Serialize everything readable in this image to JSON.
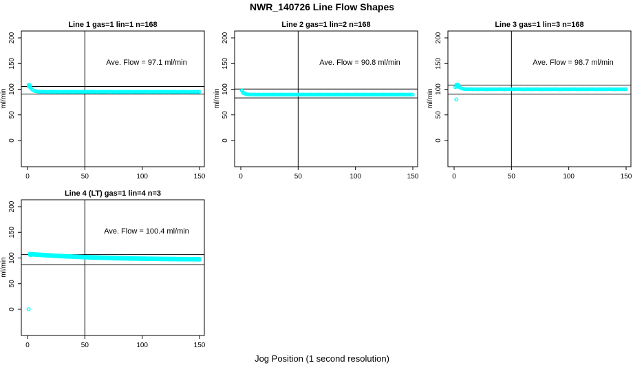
{
  "figure": {
    "main_title": "NWR_140726  Line Flow Shapes",
    "x_axis_label": "Jog Position (1 second resolution)",
    "y_axis_label": "ml/min",
    "point_color": "#00FFFF",
    "line_color": "#000000",
    "background_color": "#FFFFFF"
  },
  "chart_data": {
    "type": "scatter",
    "title": "NWR_140726  Line Flow Shapes",
    "xlabel": "Jog Position (1 second resolution)",
    "ylabel": "ml/min",
    "xlim": [
      -5.4,
      154.2
    ],
    "ylim": [
      -51,
      213
    ],
    "x_ticks": [
      0,
      50,
      100,
      150
    ],
    "y_ticks": [
      0,
      50,
      100,
      150,
      200
    ],
    "grid": false,
    "legend": "none",
    "vline_x": 50,
    "plots": [
      {
        "title": "Line 1 gas=1 lin=1 n=168",
        "gas": 1,
        "lin": 1,
        "n": 168,
        "ave_flow": 97.1,
        "annotation": "Ave. Flow =  97.1  ml/min",
        "ref_upper": 105.4,
        "ref_lower": 90.6,
        "band_layers": 1,
        "anchors": [
          [
            1,
            107.5
          ],
          [
            2,
            106
          ],
          [
            3,
            102.5
          ],
          [
            4,
            99.5
          ],
          [
            5,
            97.8
          ],
          [
            6,
            96.8
          ],
          [
            7,
            96.1
          ],
          [
            8,
            95.7
          ],
          [
            9,
            95.4
          ],
          [
            10,
            95.2
          ],
          [
            12,
            94.9
          ],
          [
            14,
            95.2
          ],
          [
            16,
            94.8
          ],
          [
            18,
            95.1
          ],
          [
            20,
            94.8
          ],
          [
            24,
            95.1
          ],
          [
            28,
            94.7
          ],
          [
            32,
            95.0
          ],
          [
            36,
            94.8
          ],
          [
            40,
            95.1
          ],
          [
            44,
            94.7
          ],
          [
            48,
            95.0
          ],
          [
            52,
            94.8
          ],
          [
            56,
            95.1
          ],
          [
            60,
            94.7
          ],
          [
            64,
            95.0
          ],
          [
            68,
            94.8
          ],
          [
            72,
            95.1
          ],
          [
            76,
            94.7
          ],
          [
            80,
            95.0
          ],
          [
            84,
            94.8
          ],
          [
            88,
            95.1
          ],
          [
            92,
            94.7
          ],
          [
            96,
            95.0
          ],
          [
            100,
            94.8
          ],
          [
            104,
            95.1
          ],
          [
            108,
            94.7
          ],
          [
            112,
            95.0
          ],
          [
            116,
            94.8
          ],
          [
            120,
            95.1
          ],
          [
            124,
            94.7
          ],
          [
            128,
            95.0
          ],
          [
            132,
            94.8
          ],
          [
            136,
            95.1
          ],
          [
            140,
            94.7
          ],
          [
            144,
            95.0
          ],
          [
            148,
            94.8
          ],
          [
            150,
            95.0
          ]
        ],
        "extra_points": [
          [
            1,
            105
          ],
          [
            1,
            108.5
          ],
          [
            2,
            104
          ],
          [
            2,
            108
          ]
        ],
        "outliers": []
      },
      {
        "title": "Line 2 gas=1 lin=2 n=168",
        "gas": 1,
        "lin": 2,
        "n": 168,
        "ave_flow": 90.8,
        "annotation": "Ave. Flow =  90.8  ml/min",
        "ref_upper": 100.4,
        "ref_lower": 83.0,
        "band_layers": 1,
        "anchors": [
          [
            1,
            98
          ],
          [
            2,
            94
          ],
          [
            3,
            91.8
          ],
          [
            4,
            90.8
          ],
          [
            5,
            90.3
          ],
          [
            6,
            90.0
          ],
          [
            8,
            89.7
          ],
          [
            10,
            89.5
          ],
          [
            12,
            89.7
          ],
          [
            14,
            89.4
          ],
          [
            16,
            89.6
          ],
          [
            18,
            89.4
          ],
          [
            20,
            89.6
          ],
          [
            24,
            89.4
          ],
          [
            28,
            89.6
          ],
          [
            32,
            89.4
          ],
          [
            36,
            89.6
          ],
          [
            40,
            89.4
          ],
          [
            44,
            89.6
          ],
          [
            48,
            89.4
          ],
          [
            52,
            89.6
          ],
          [
            56,
            89.4
          ],
          [
            60,
            89.6
          ],
          [
            64,
            89.4
          ],
          [
            68,
            89.6
          ],
          [
            72,
            89.4
          ],
          [
            76,
            89.6
          ],
          [
            80,
            89.4
          ],
          [
            84,
            89.6
          ],
          [
            88,
            89.4
          ],
          [
            92,
            89.6
          ],
          [
            96,
            89.4
          ],
          [
            100,
            89.6
          ],
          [
            104,
            89.4
          ],
          [
            108,
            89.6
          ],
          [
            112,
            89.4
          ],
          [
            116,
            89.6
          ],
          [
            120,
            89.4
          ],
          [
            124,
            89.6
          ],
          [
            128,
            89.4
          ],
          [
            132,
            89.6
          ],
          [
            136,
            89.4
          ],
          [
            140,
            89.6
          ],
          [
            144,
            89.4
          ],
          [
            148,
            89.6
          ],
          [
            150,
            89.5
          ]
        ],
        "extra_points": [
          [
            1,
            96.5
          ],
          [
            2,
            92.5
          ]
        ],
        "outliers": []
      },
      {
        "title": "Line 3 gas=1 lin=3 n=168",
        "gas": 1,
        "lin": 3,
        "n": 168,
        "ave_flow": 98.7,
        "annotation": "Ave. Flow =  98.7  ml/min",
        "ref_upper": 108.0,
        "ref_lower": 90.5,
        "band_layers": 1,
        "anchors": [
          [
            1,
            104
          ],
          [
            2,
            107.5
          ],
          [
            3,
            107
          ],
          [
            4,
            105.5
          ],
          [
            5,
            103.5
          ],
          [
            6,
            102
          ],
          [
            7,
            101.2
          ],
          [
            8,
            100.7
          ],
          [
            10,
            100.2
          ],
          [
            12,
            99.9
          ],
          [
            14,
            100.2
          ],
          [
            16,
            99.8
          ],
          [
            18,
            100.1
          ],
          [
            20,
            99.8
          ],
          [
            24,
            100.1
          ],
          [
            28,
            99.7
          ],
          [
            32,
            100.0
          ],
          [
            36,
            99.8
          ],
          [
            40,
            100.1
          ],
          [
            44,
            99.7
          ],
          [
            48,
            100.0
          ],
          [
            52,
            99.8
          ],
          [
            56,
            100.1
          ],
          [
            60,
            99.7
          ],
          [
            64,
            100.0
          ],
          [
            68,
            99.8
          ],
          [
            72,
            100.1
          ],
          [
            76,
            99.7
          ],
          [
            80,
            100.0
          ],
          [
            84,
            99.8
          ],
          [
            88,
            100.1
          ],
          [
            92,
            99.7
          ],
          [
            96,
            100.0
          ],
          [
            100,
            99.8
          ],
          [
            104,
            100.1
          ],
          [
            108,
            99.7
          ],
          [
            112,
            100.0
          ],
          [
            116,
            99.8
          ],
          [
            120,
            100.1
          ],
          [
            124,
            99.7
          ],
          [
            128,
            100.0
          ],
          [
            132,
            99.8
          ],
          [
            136,
            100.1
          ],
          [
            140,
            99.7
          ],
          [
            144,
            100.0
          ],
          [
            148,
            99.8
          ],
          [
            150,
            100.0
          ]
        ],
        "extra_points": [
          [
            2,
            109
          ],
          [
            2,
            105
          ],
          [
            3,
            109
          ],
          [
            3,
            104.5
          ],
          [
            4,
            107.5
          ]
        ],
        "outliers": [
          [
            2,
            80
          ]
        ]
      },
      {
        "title": "Line 4 (LT) gas=1 lin=4 n=3",
        "gas": 1,
        "lin": 4,
        "n": 3,
        "ave_flow": 100.4,
        "annotation": "Ave. Flow =  100.4  ml/min",
        "ref_upper": 106.5,
        "ref_lower": 86.5,
        "band_layers": 2,
        "anchors": [
          [
            2,
            107.5
          ],
          [
            3,
            107.3
          ],
          [
            4,
            107.2
          ],
          [
            5,
            107.0
          ],
          [
            8,
            106.5
          ],
          [
            12,
            106.0
          ],
          [
            16,
            105.4
          ],
          [
            20,
            104.8
          ],
          [
            25,
            104.2
          ],
          [
            30,
            103.6
          ],
          [
            35,
            103.1
          ],
          [
            40,
            102.6
          ],
          [
            45,
            102.1
          ],
          [
            50,
            101.6
          ],
          [
            55,
            101.2
          ],
          [
            60,
            100.8
          ],
          [
            65,
            100.4
          ],
          [
            70,
            100.1
          ],
          [
            75,
            99.8
          ],
          [
            80,
            99.5
          ],
          [
            85,
            99.3
          ],
          [
            90,
            99.1
          ],
          [
            95,
            98.9
          ],
          [
            100,
            98.7
          ],
          [
            105,
            98.5
          ],
          [
            110,
            98.4
          ],
          [
            115,
            98.2
          ],
          [
            120,
            98.1
          ],
          [
            125,
            98.0
          ],
          [
            130,
            97.9
          ],
          [
            135,
            97.8
          ],
          [
            140,
            97.7
          ],
          [
            145,
            97.6
          ],
          [
            150,
            97.5
          ]
        ],
        "extra_points": [
          [
            2,
            106
          ],
          [
            3,
            105.5
          ],
          [
            4,
            106.5
          ]
        ],
        "outliers": [
          [
            1,
            0
          ]
        ]
      }
    ]
  }
}
